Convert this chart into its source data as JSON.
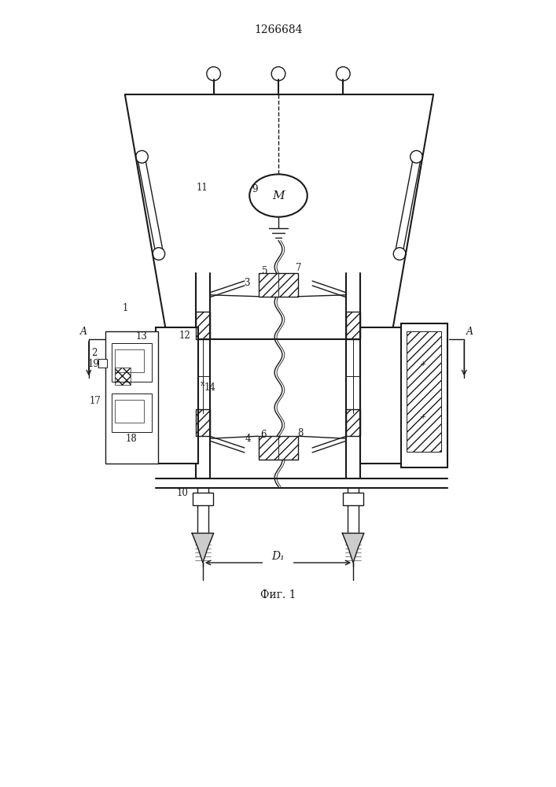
{
  "title": "1266684",
  "fig_label": "Фиг. 1",
  "bg_color": "#ffffff",
  "line_color": "#1a1a1a",
  "title_fontsize": 10,
  "label_fontsize": 8.5,
  "fig_label_fontsize": 10,
  "dimension_label": "D₁"
}
